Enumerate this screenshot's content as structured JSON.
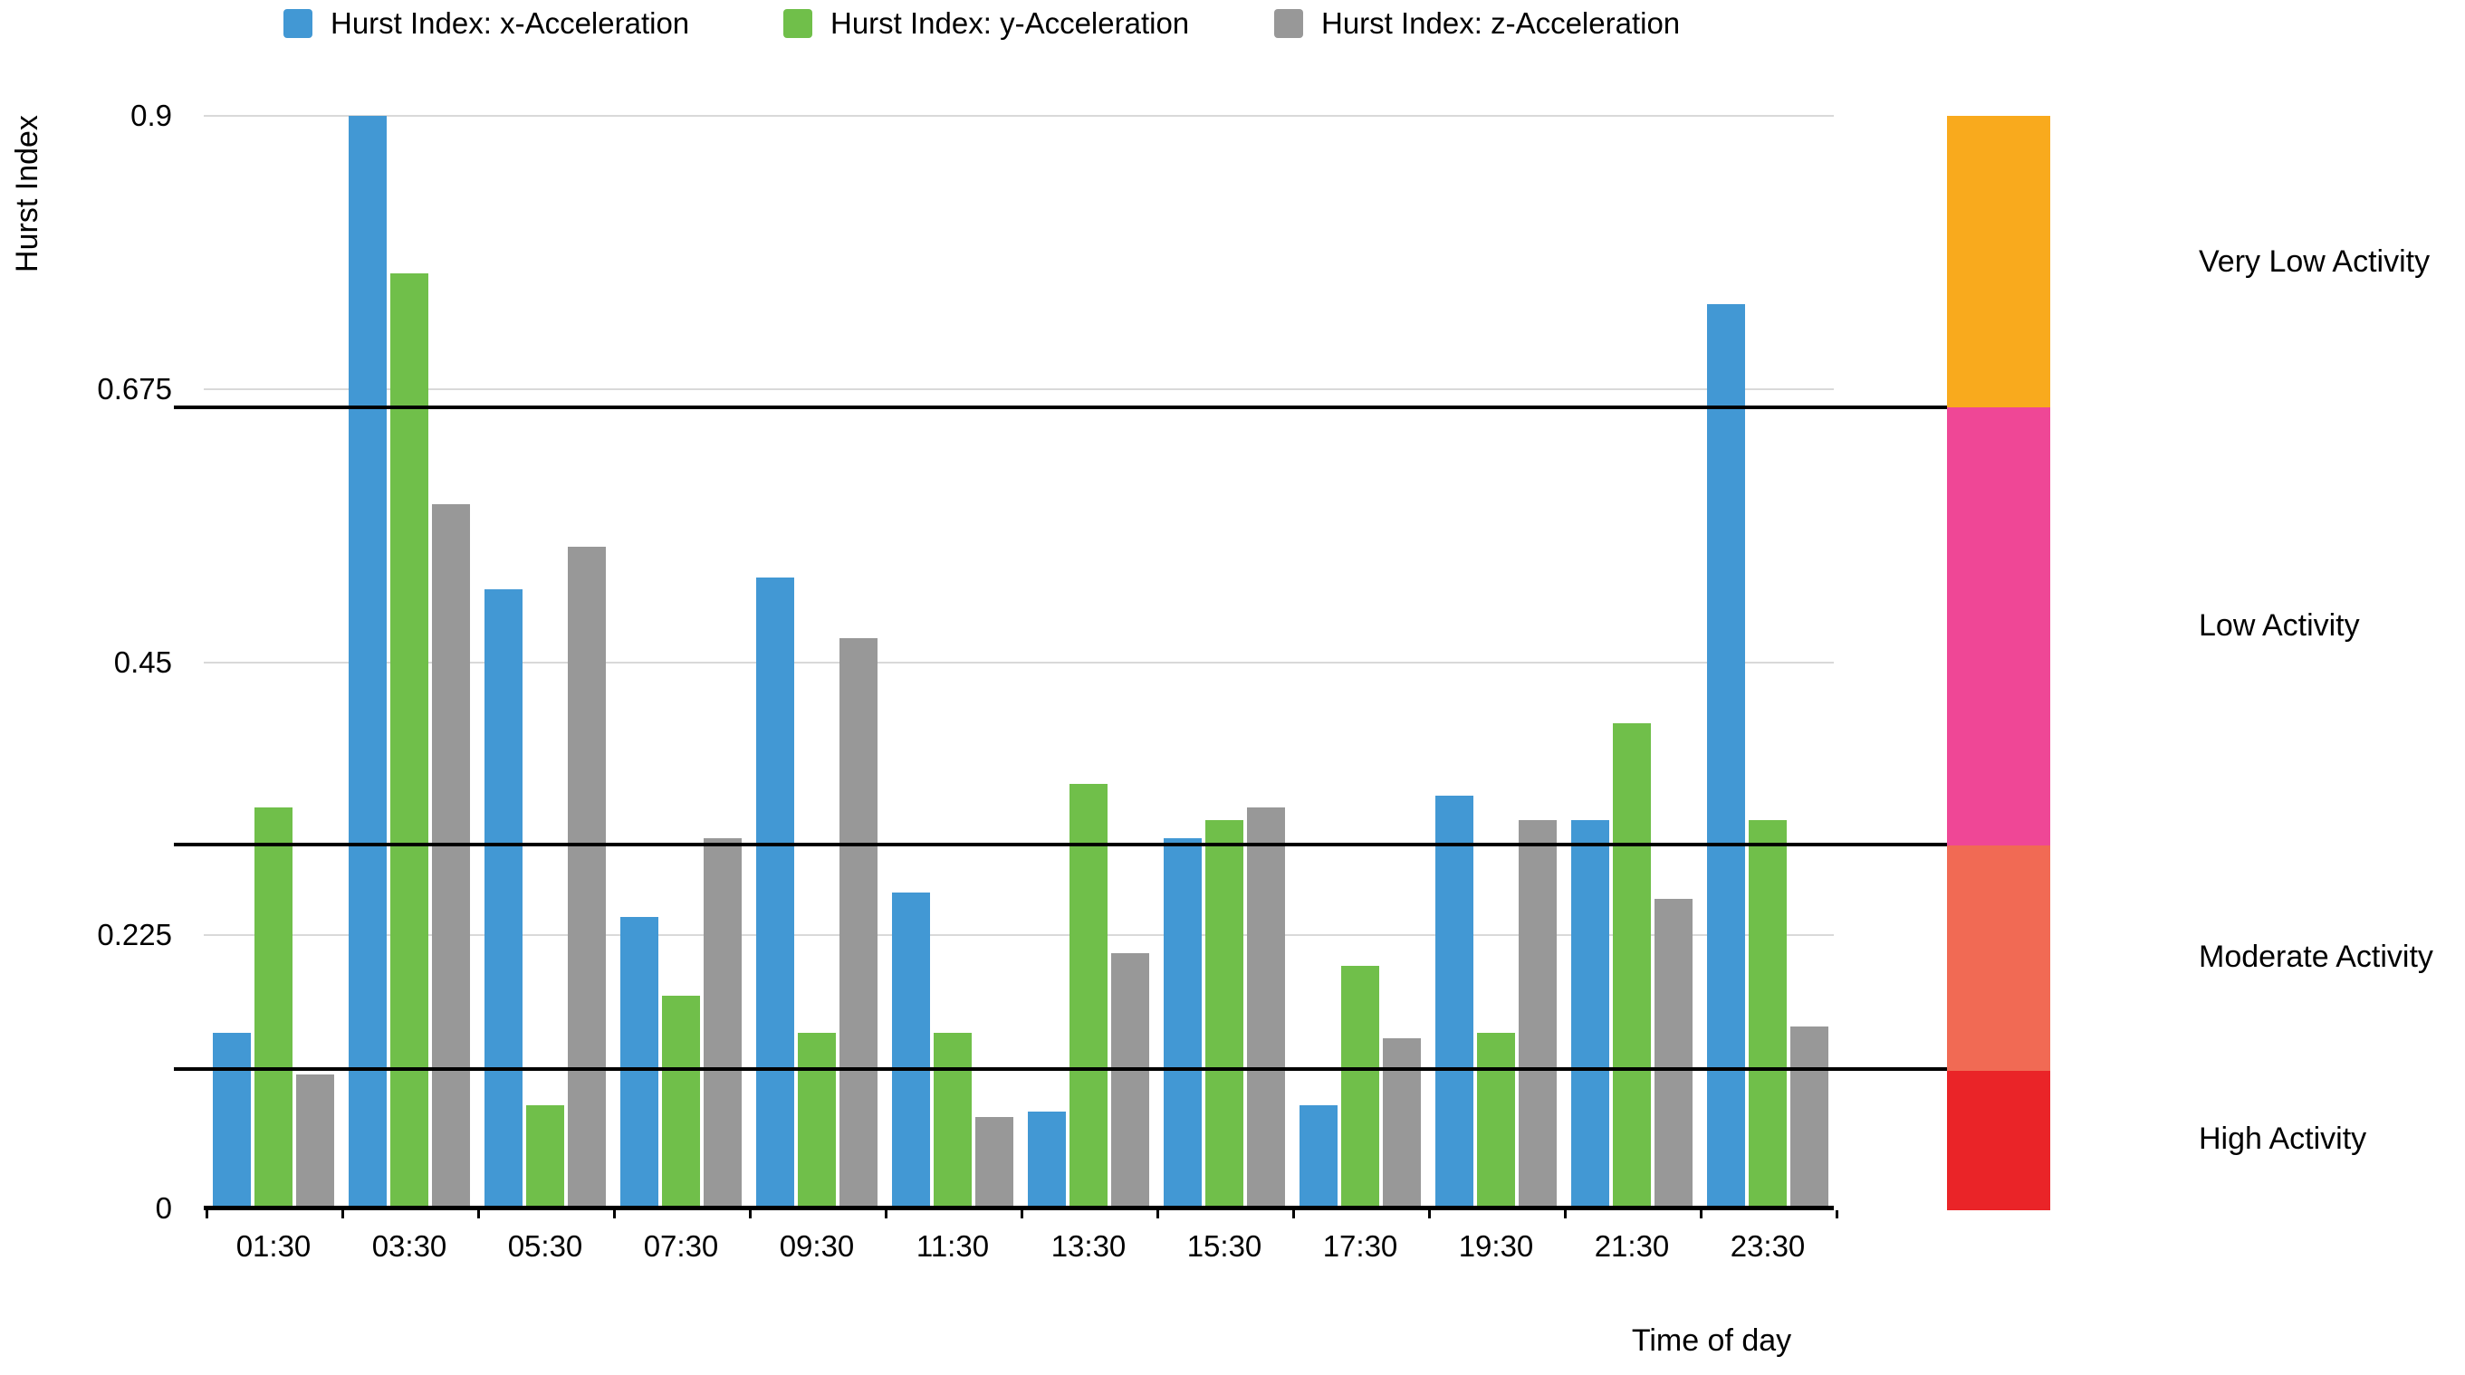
{
  "chart_data": {
    "type": "bar",
    "title": "",
    "xlabel": "Time of day",
    "ylabel": "Hurst Index",
    "categories": [
      "01:30",
      "03:30",
      "05:30",
      "07:30",
      "09:30",
      "11:30",
      "13:30",
      "15:30",
      "17:30",
      "19:30",
      "21:30",
      "23:30"
    ],
    "series": [
      {
        "name": "Hurst Index: x-Acceleration",
        "color": "#4298d4",
        "values": [
          0.145,
          0.9,
          0.51,
          0.24,
          0.52,
          0.26,
          0.08,
          0.305,
          0.085,
          0.34,
          0.32,
          0.745
        ]
      },
      {
        "name": "Hurst Index: y-Acceleration",
        "color": "#70bf4a",
        "values": [
          0.33,
          0.77,
          0.085,
          0.175,
          0.145,
          0.145,
          0.35,
          0.32,
          0.2,
          0.145,
          0.4,
          0.32
        ]
      },
      {
        "name": "Hurst Index: z-Acceleration",
        "color": "#989898",
        "values": [
          0.11,
          0.58,
          0.545,
          0.305,
          0.47,
          0.075,
          0.21,
          0.33,
          0.14,
          0.32,
          0.255,
          0.15
        ]
      }
    ],
    "ylim": [
      0,
      0.9
    ],
    "y_ticks": [
      {
        "label": "0.9",
        "value": 0.9
      },
      {
        "label": "0.675",
        "value": 0.675
      },
      {
        "label": "0.45",
        "value": 0.45
      },
      {
        "label": "0.225",
        "value": 0.225
      },
      {
        "label": "0",
        "value": 0
      }
    ],
    "gridlines": [
      0.9,
      0.675,
      0.45,
      0.225
    ],
    "grid": "horizontal",
    "legend_position": "top",
    "threshold_lines": [
      0.66,
      0.3,
      0.115
    ],
    "activity_bands": [
      {
        "label": "Very Low Activity",
        "from": 0.66,
        "to": 0.9,
        "color": "#f9aa1d"
      },
      {
        "label": "Low Activity",
        "from": 0.3,
        "to": 0.66,
        "color": "#ef4796"
      },
      {
        "label": "Moderate Activity",
        "from": 0.115,
        "to": 0.3,
        "color": "#f16a54"
      },
      {
        "label": "High Activity",
        "from": 0,
        "to": 0.115,
        "color": "#ea2428"
      }
    ],
    "colors": {
      "gridline": "#d9d9d9",
      "axis": "#000000",
      "text": "#000000",
      "background": "#ffffff"
    }
  }
}
